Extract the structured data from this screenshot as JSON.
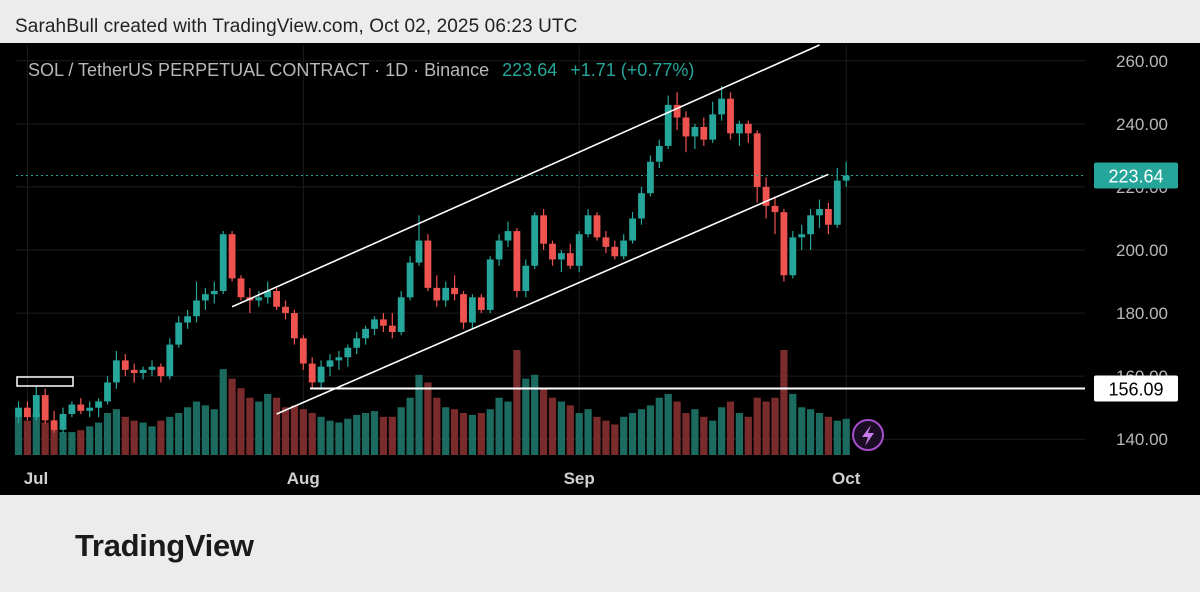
{
  "header": {
    "attribution": "SarahBull created with TradingView.com, Oct 02, 2025 06:23 UTC"
  },
  "legend": {
    "symbol": "SOL / TetherUS PERPETUAL CONTRACT · 1D · Binance",
    "last": "223.64",
    "change": "+1.71 (+0.77%)"
  },
  "footer": {
    "brand": "TradingView"
  },
  "colors": {
    "up": "#26a69a",
    "down": "#ef5350",
    "vol_up": "#1b6b60",
    "vol_down": "#7a2b2b",
    "grid": "#1c1c1c",
    "axis_text": "#b8b8b8",
    "last_price_bg": "#26a69a"
  },
  "chart_data": {
    "type": "candlestick",
    "y_axis": {
      "min": 135,
      "max": 265,
      "ticks": [
        "260.00",
        "240.00",
        "220.00",
        "200.00",
        "180.00",
        "160.00",
        "140.00"
      ],
      "tick_values": [
        260,
        240,
        220,
        200,
        180,
        160,
        140
      ]
    },
    "x_axis": {
      "labels": [
        "Jul",
        "Aug",
        "Sep",
        "Oct"
      ],
      "label_dates": [
        "2025-07-01",
        "2025-08-01",
        "2025-09-01",
        "2025-10-01"
      ]
    },
    "price_labels": [
      {
        "value": 223.64,
        "text": "223.64",
        "style": "last"
      },
      {
        "value": 156.09,
        "text": "156.09",
        "style": "level"
      }
    ],
    "horizontal_levels": [
      223.64,
      156.09
    ],
    "trend_lines": [
      {
        "name": "channel-upper",
        "from": {
          "date": "2025-07-24",
          "price": 182
        },
        "to": {
          "date": "2025-09-28",
          "price": 265
        }
      },
      {
        "name": "channel-lower",
        "from": {
          "date": "2025-07-29",
          "price": 148
        },
        "to": {
          "date": "2025-09-29",
          "price": 224
        }
      }
    ],
    "start_date": "2025-06-30",
    "candles": [
      [
        147,
        152,
        145,
        150
      ],
      [
        150,
        152,
        146,
        147
      ],
      [
        147,
        157,
        146,
        154
      ],
      [
        154,
        156,
        145,
        146
      ],
      [
        146,
        149,
        142,
        143
      ],
      [
        143,
        150,
        142,
        148
      ],
      [
        148,
        152,
        147,
        151
      ],
      [
        151,
        153,
        148,
        149
      ],
      [
        149,
        152,
        147,
        150
      ],
      [
        150,
        153,
        147,
        152
      ],
      [
        152,
        160,
        151,
        158
      ],
      [
        158,
        168,
        156,
        165
      ],
      [
        165,
        167,
        160,
        162
      ],
      [
        162,
        164,
        158,
        161
      ],
      [
        161,
        163,
        159,
        162
      ],
      [
        162,
        165,
        160,
        163
      ],
      [
        163,
        164,
        158,
        160
      ],
      [
        160,
        172,
        159,
        170
      ],
      [
        170,
        179,
        169,
        177
      ],
      [
        177,
        181,
        175,
        179
      ],
      [
        179,
        190,
        177,
        184
      ],
      [
        184,
        188,
        181,
        186
      ],
      [
        186,
        190,
        183,
        187
      ],
      [
        187,
        206,
        186,
        205
      ],
      [
        205,
        206,
        190,
        191
      ],
      [
        191,
        192,
        184,
        185
      ],
      [
        185,
        188,
        180,
        184
      ],
      [
        184,
        187,
        182,
        185
      ],
      [
        185,
        190,
        183,
        187
      ],
      [
        187,
        188,
        181,
        182
      ],
      [
        182,
        184,
        178,
        180
      ],
      [
        180,
        181,
        170,
        172
      ],
      [
        172,
        173,
        162,
        164
      ],
      [
        164,
        166,
        156,
        158
      ],
      [
        158,
        165,
        156,
        163
      ],
      [
        163,
        167,
        160,
        165
      ],
      [
        165,
        168,
        162,
        166
      ],
      [
        166,
        170,
        163,
        169
      ],
      [
        169,
        174,
        167,
        172
      ],
      [
        172,
        176,
        170,
        175
      ],
      [
        175,
        179,
        173,
        178
      ],
      [
        178,
        180,
        174,
        176
      ],
      [
        176,
        180,
        172,
        174
      ],
      [
        174,
        187,
        173,
        185
      ],
      [
        185,
        198,
        184,
        196
      ],
      [
        196,
        211,
        195,
        203
      ],
      [
        203,
        205,
        187,
        188
      ],
      [
        188,
        192,
        182,
        184
      ],
      [
        184,
        190,
        182,
        188
      ],
      [
        188,
        192,
        184,
        186
      ],
      [
        186,
        187,
        175,
        177
      ],
      [
        177,
        186,
        175,
        185
      ],
      [
        185,
        186,
        180,
        181
      ],
      [
        181,
        198,
        180,
        197
      ],
      [
        197,
        205,
        195,
        203
      ],
      [
        203,
        209,
        201,
        206
      ],
      [
        206,
        207,
        185,
        187
      ],
      [
        187,
        197,
        185,
        195
      ],
      [
        195,
        212,
        194,
        211
      ],
      [
        211,
        213,
        200,
        202
      ],
      [
        202,
        203,
        195,
        197
      ],
      [
        197,
        200,
        193,
        199
      ],
      [
        199,
        202,
        194,
        195
      ],
      [
        195,
        206,
        193,
        205
      ],
      [
        205,
        213,
        204,
        211
      ],
      [
        211,
        212,
        203,
        204
      ],
      [
        204,
        206,
        199,
        201
      ],
      [
        201,
        203,
        197,
        198
      ],
      [
        198,
        205,
        197,
        203
      ],
      [
        203,
        212,
        202,
        210
      ],
      [
        210,
        220,
        208,
        218
      ],
      [
        218,
        230,
        217,
        228
      ],
      [
        228,
        235,
        226,
        233
      ],
      [
        233,
        249,
        232,
        246
      ],
      [
        246,
        250,
        238,
        242
      ],
      [
        242,
        244,
        231,
        236
      ],
      [
        236,
        240,
        232,
        239
      ],
      [
        239,
        242,
        233,
        235
      ],
      [
        235,
        247,
        234,
        243
      ],
      [
        243,
        252,
        241,
        248
      ],
      [
        248,
        250,
        235,
        237
      ],
      [
        237,
        241,
        233,
        240
      ],
      [
        240,
        241,
        234,
        237
      ],
      [
        237,
        238,
        215,
        220
      ],
      [
        220,
        223,
        210,
        214
      ],
      [
        214,
        217,
        205,
        212
      ],
      [
        212,
        213,
        190,
        192
      ],
      [
        192,
        206,
        191,
        204
      ],
      [
        204,
        208,
        200,
        205
      ],
      [
        205,
        213,
        200,
        211
      ],
      [
        211,
        216,
        207,
        213
      ],
      [
        213,
        215,
        205,
        208
      ],
      [
        208,
        226,
        207,
        222
      ],
      [
        222,
        228,
        220,
        223.64
      ]
    ],
    "volume": [
      20,
      18,
      22,
      17,
      14,
      12,
      12,
      13,
      15,
      17,
      22,
      24,
      20,
      18,
      17,
      15,
      18,
      20,
      22,
      25,
      28,
      26,
      24,
      45,
      40,
      35,
      30,
      28,
      32,
      30,
      25,
      26,
      24,
      22,
      20,
      18,
      17,
      19,
      21,
      22,
      23,
      20,
      20,
      25,
      30,
      42,
      38,
      30,
      25,
      24,
      22,
      21,
      22,
      24,
      30,
      28,
      55,
      40,
      42,
      35,
      30,
      28,
      26,
      22,
      24,
      20,
      18,
      16,
      20,
      22,
      24,
      26,
      30,
      32,
      28,
      22,
      24,
      20,
      18,
      25,
      28,
      22,
      20,
      30,
      28,
      30,
      55,
      32,
      25,
      24,
      22,
      20,
      18,
      19
    ]
  }
}
